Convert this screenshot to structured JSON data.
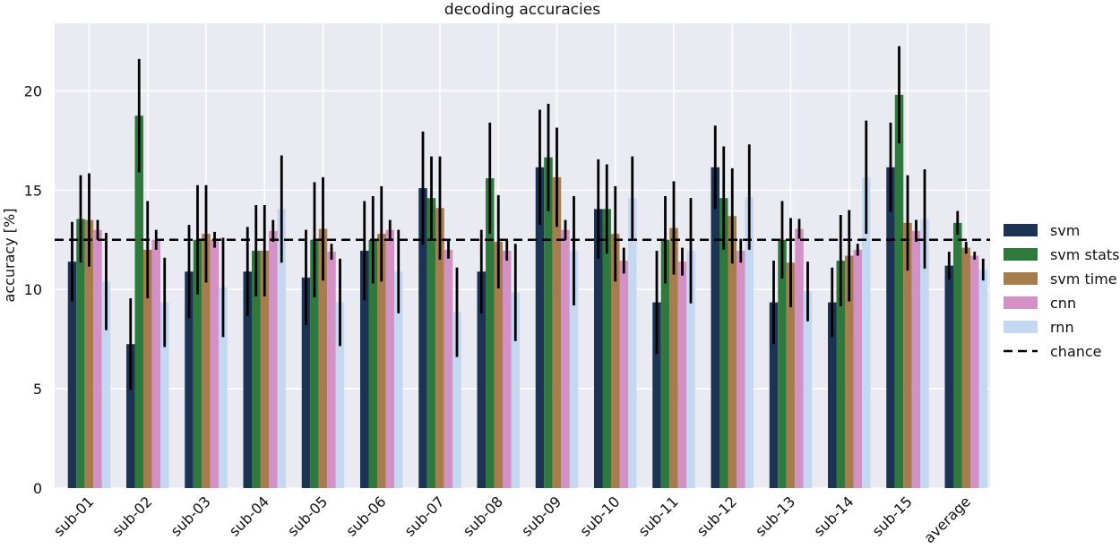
{
  "chart_data": {
    "type": "bar",
    "title": "decoding accuracies",
    "xlabel": "",
    "ylabel": "accuracy [%]",
    "ylim": [
      0,
      23.4
    ],
    "yticks": [
      0,
      5,
      10,
      15,
      20
    ],
    "grid": true,
    "legend_position": "right",
    "categories": [
      "sub-01",
      "sub-02",
      "sub-03",
      "sub-04",
      "sub-05",
      "sub-06",
      "sub-07",
      "sub-08",
      "sub-09",
      "sub-10",
      "sub-11",
      "sub-12",
      "sub-13",
      "sub-14",
      "sub-15",
      "average"
    ],
    "series": [
      {
        "name": "svm",
        "color": "#1d3354",
        "values": [
          11.4,
          7.25,
          10.9,
          10.9,
          10.6,
          11.95,
          15.1,
          10.9,
          16.15,
          14.05,
          9.35,
          16.15,
          9.35,
          9.35,
          16.15,
          11.2
        ],
        "errors": [
          2.0,
          2.3,
          2.35,
          2.25,
          2.4,
          2.5,
          2.85,
          2.1,
          2.9,
          2.5,
          2.6,
          2.1,
          2.1,
          1.75,
          2.25,
          0.7
        ]
      },
      {
        "name": "svm stats",
        "color": "#2e7a3d",
        "values": [
          13.55,
          18.75,
          12.5,
          11.95,
          12.5,
          12.5,
          14.6,
          15.6,
          16.65,
          14.05,
          12.5,
          14.6,
          12.5,
          11.45,
          19.8,
          13.35
        ],
        "errors": [
          2.2,
          2.85,
          2.75,
          2.3,
          2.9,
          2.2,
          2.1,
          2.8,
          2.7,
          2.25,
          2.2,
          2.6,
          1.95,
          2.3,
          2.45,
          0.6
        ]
      },
      {
        "name": "svm time",
        "color": "#a87d4d",
        "values": [
          13.5,
          12.0,
          12.8,
          11.95,
          13.05,
          12.8,
          14.1,
          12.4,
          15.65,
          12.8,
          13.1,
          13.7,
          11.35,
          11.7,
          13.35,
          12.1
        ],
        "errors": [
          2.35,
          2.45,
          2.45,
          2.3,
          2.6,
          2.4,
          2.6,
          2.35,
          2.5,
          2.4,
          2.35,
          2.4,
          2.25,
          2.3,
          2.4,
          0.3
        ]
      },
      {
        "name": "cnn",
        "color": "#d491c6",
        "values": [
          13.0,
          12.5,
          12.5,
          12.95,
          11.9,
          13.0,
          12.0,
          11.95,
          13.0,
          11.45,
          11.4,
          11.95,
          13.05,
          12.0,
          12.95,
          11.7
        ],
        "errors": [
          0.5,
          0.5,
          0.4,
          0.55,
          0.4,
          0.5,
          0.45,
          0.5,
          0.5,
          0.65,
          0.7,
          0.6,
          0.5,
          0.3,
          0.55,
          0.2
        ]
      },
      {
        "name": "rnn",
        "color": "#c4d8f2",
        "values": [
          10.4,
          9.35,
          10.1,
          14.05,
          9.35,
          10.9,
          8.85,
          9.85,
          11.95,
          14.6,
          11.95,
          14.65,
          9.9,
          15.65,
          13.55,
          11.0
        ],
        "errors": [
          2.45,
          2.25,
          2.5,
          2.7,
          2.2,
          2.1,
          2.25,
          2.45,
          2.75,
          2.1,
          2.65,
          2.65,
          1.5,
          2.85,
          2.5,
          0.55
        ]
      }
    ],
    "chance": {
      "label": "chance",
      "value": 12.5
    }
  }
}
